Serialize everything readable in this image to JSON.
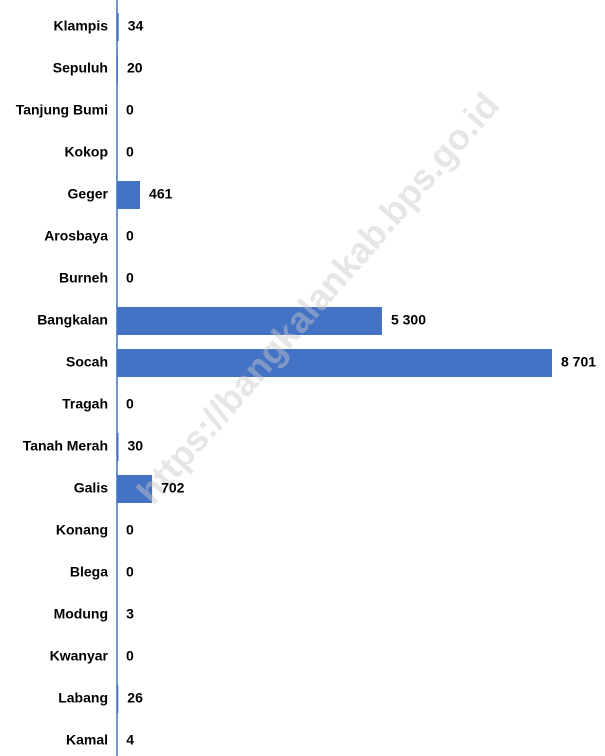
{
  "chart_data": {
    "type": "bar",
    "orientation": "horizontal",
    "categories": [
      "Klampis",
      "Sepuluh",
      "Tanjung Bumi",
      "Kokop",
      "Geger",
      "Arosbaya",
      "Burneh",
      "Bangkalan",
      "Socah",
      "Tragah",
      "Tanah Merah",
      "Galis",
      "Konang",
      "Blega",
      "Modung",
      "Kwanyar",
      "Labang",
      "Kamal"
    ],
    "values": [
      34,
      20,
      0,
      0,
      461,
      0,
      0,
      5300,
      8701,
      0,
      30,
      702,
      0,
      0,
      3,
      0,
      26,
      4
    ],
    "value_labels": [
      "34",
      "20",
      "0",
      "0",
      "461",
      "0",
      "0",
      "5 300",
      "8 701",
      "0",
      "30",
      "702",
      "0",
      "0",
      "3",
      "0",
      "26",
      "4"
    ],
    "color": "#4472c4",
    "watermark": "https://bangkalankab.bps.go.id"
  }
}
